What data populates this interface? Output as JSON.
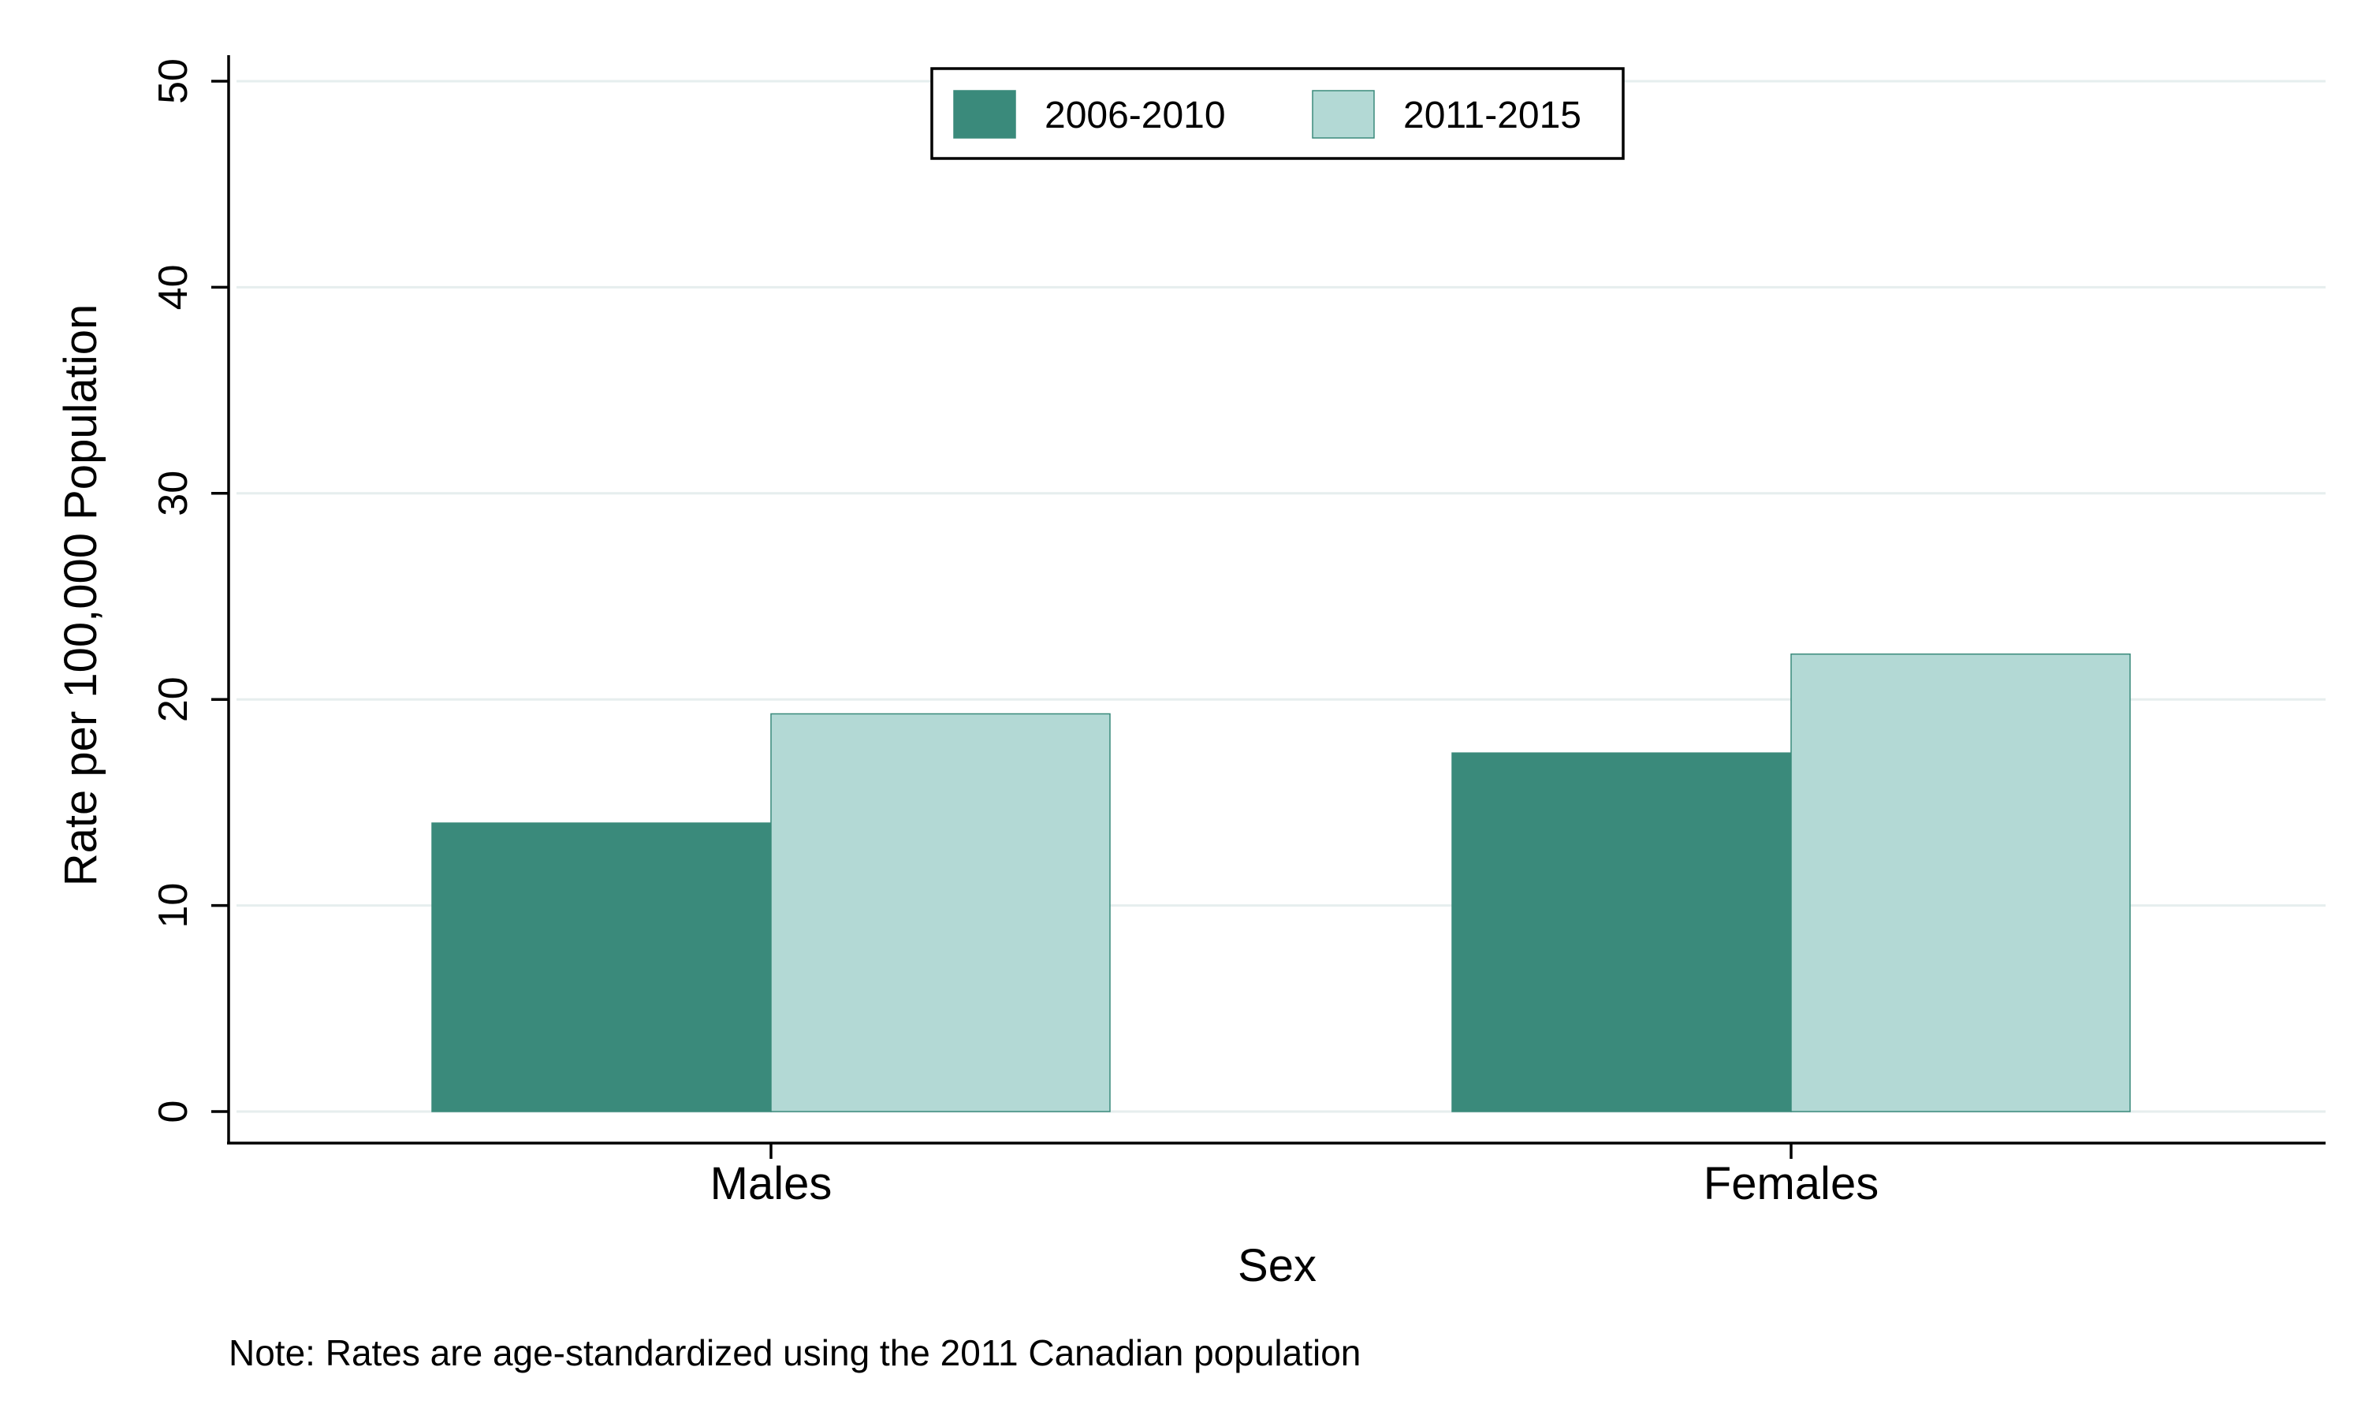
{
  "chart_data": {
    "type": "bar",
    "categories": [
      "Males",
      "Females"
    ],
    "series": [
      {
        "name": "2006-2010",
        "values": [
          14.0,
          17.4
        ],
        "color": "#3a8a7b"
      },
      {
        "name": "2011-2015",
        "values": [
          19.3,
          22.2
        ],
        "color": "#b3d9d5"
      }
    ],
    "xlabel": "Sex",
    "ylabel": "Rate per 100,000 Population",
    "ylim": [
      0,
      50
    ],
    "yticks": [
      0,
      10,
      20,
      30,
      40,
      50
    ],
    "grid": true,
    "legend_position": "top-center",
    "note": "Note: Rates are age-standardized using the 2011 Canadian population"
  }
}
